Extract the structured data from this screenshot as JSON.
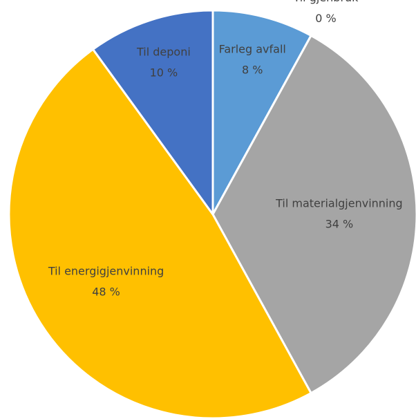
{
  "chart_data": {
    "type": "pie",
    "categories": [
      "Farleg avfall",
      "Til gjenbruk",
      "Til materialgjenvinning",
      "Til energigjenvinning",
      "Til deponi"
    ],
    "values": [
      8,
      0,
      34,
      48,
      10
    ],
    "value_labels": [
      "8 %",
      "0 %",
      "34 %",
      "48 %",
      "10 %"
    ],
    "colors": [
      "#5b9bd5",
      "#ed7d31",
      "#a5a5a5",
      "#ffc000",
      "#4472c4"
    ]
  }
}
